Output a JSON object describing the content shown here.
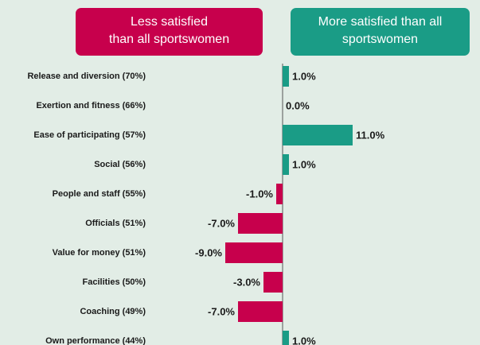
{
  "chart_data": {
    "type": "diverging-bar",
    "annotations": [
      {
        "lines": [
          "Less satisfied",
          "than all sportswomen"
        ],
        "color": "#c7004c"
      },
      {
        "lines": [
          "More satisfied than all",
          "sportswomen"
        ],
        "color": "#1a9c86"
      }
    ],
    "categories": [
      "Release and diversion (70%)",
      "Exertion and fitness (66%)",
      "Ease of participating (57%)",
      "Social (56%)",
      "People and staff (55%)",
      "Officials (51%)",
      "Value for money (51%)",
      "Facilities (50%)",
      "Coaching (49%)",
      "Own performance (44%)"
    ],
    "values": [
      1.0,
      0.0,
      11.0,
      1.0,
      -1.0,
      -7.0,
      -9.0,
      -3.0,
      -7.0,
      1.0
    ],
    "value_labels": [
      "1.0%",
      "0.0%",
      "11.0%",
      "1.0%",
      "-1.0%",
      "-7.0%",
      "-9.0%",
      "-3.0%",
      "-7.0%",
      "1.0%"
    ],
    "positive_color": "#1a9c86",
    "negative_color": "#c7004c",
    "xlim": [
      -20,
      30
    ]
  }
}
